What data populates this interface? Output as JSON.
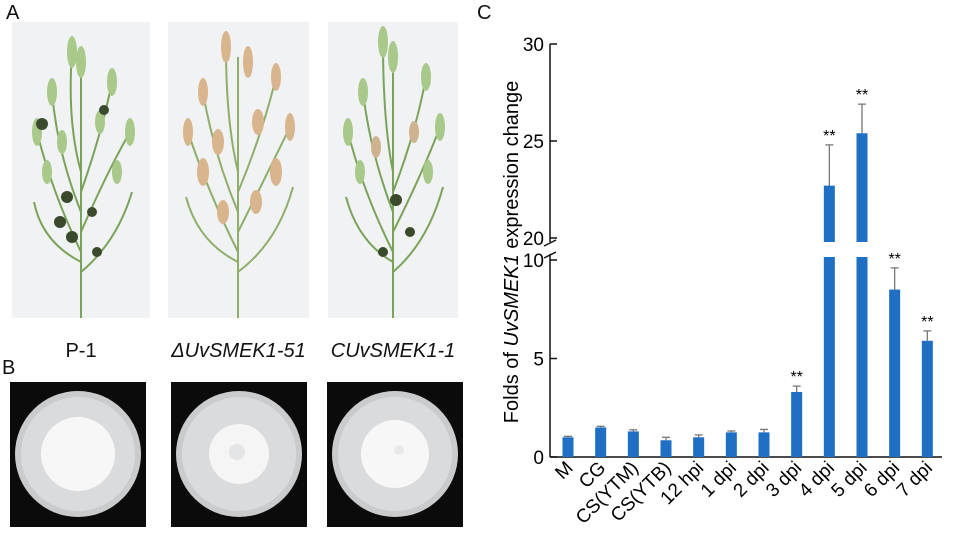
{
  "panels": {
    "a_letter": "A",
    "b_letter": "B",
    "c_letter": "C"
  },
  "strains": [
    {
      "label": "P-1",
      "italic": false
    },
    {
      "label": "ΔUvSMEK1-51",
      "italic": true
    },
    {
      "label": "CUvSMEK1-1",
      "italic": true
    }
  ],
  "colors": {
    "bar": "#1f6fc5",
    "error": "#777777",
    "panicle_green": "#8fb86a",
    "panicle_tan": "#d8b58c",
    "smut_ball": "#3a4a2c",
    "plate_bg": "#0b0b0b",
    "agar": "#d9dbdc",
    "colony": "#f7f7f8"
  },
  "chart_data": {
    "type": "bar",
    "ylabel_prefix": "Folds of ",
    "ylabel_gene": "UvSMEK1",
    "ylabel_suffix": " expression change",
    "categories": [
      "M",
      "CG",
      "CS(YTM)",
      "CS(YTB)",
      "12 hpi",
      "1 dpi",
      "2 dpi",
      "3 dpi",
      "4 dpi",
      "5 dpi",
      "6 dpi",
      "7 dpi"
    ],
    "values": [
      1.0,
      1.5,
      1.3,
      0.85,
      1.0,
      1.25,
      1.25,
      3.3,
      22.7,
      25.4,
      8.5,
      5.9
    ],
    "errors": [
      0.05,
      0.06,
      0.08,
      0.15,
      0.12,
      0.07,
      0.15,
      0.3,
      2.1,
      1.5,
      1.1,
      0.5
    ],
    "significance": [
      "",
      "",
      "",
      "",
      "",
      "",
      "",
      "**",
      "**",
      "**",
      "**",
      "**"
    ],
    "axis_break": {
      "lower_max": 10,
      "upper_min": 20
    },
    "lower_ticks": [
      0,
      5,
      10
    ],
    "upper_ticks": [
      20,
      25,
      30
    ],
    "upper_max": 30
  }
}
